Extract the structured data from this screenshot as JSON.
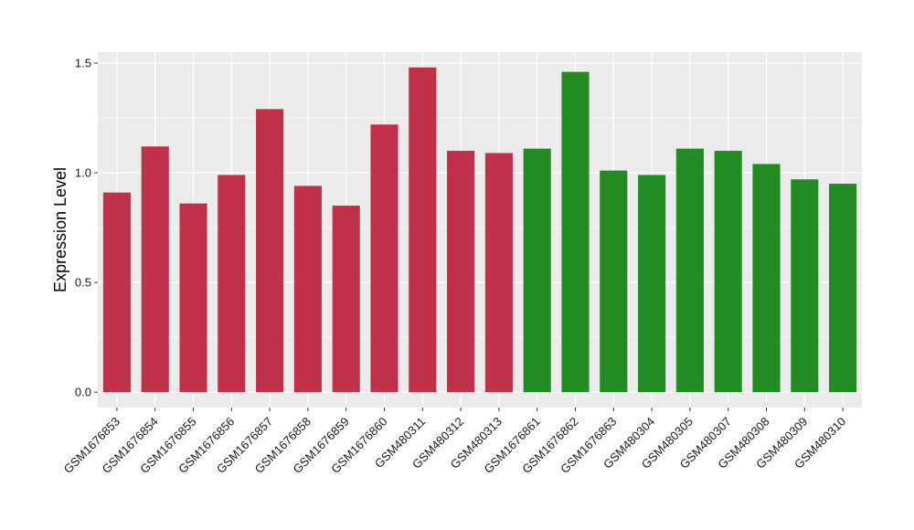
{
  "chart_data": {
    "type": "bar",
    "ylabel": "Expression Level",
    "xlabel": "",
    "ylim": [
      -0.07,
      1.55
    ],
    "yticks": [
      0.0,
      0.5,
      1.0,
      1.5
    ],
    "ytick_labels": [
      "0.0",
      "0.5",
      "1.0",
      "1.5"
    ],
    "grid": true,
    "background_color": "#ebebeb",
    "grid_color": "#ffffff",
    "categories": [
      "GSM1676853",
      "GSM1676854",
      "GSM1676855",
      "GSM1676856",
      "GSM1676857",
      "GSM1676858",
      "GSM1676859",
      "GSM1676860",
      "GSM480311",
      "GSM480312",
      "GSM480313",
      "GSM1676861",
      "GSM1676862",
      "GSM1676863",
      "GSM480304",
      "GSM480305",
      "GSM480307",
      "GSM480308",
      "GSM480309",
      "GSM480310"
    ],
    "values": [
      0.91,
      1.12,
      0.86,
      0.99,
      1.29,
      0.94,
      0.85,
      1.22,
      1.48,
      1.1,
      1.09,
      1.11,
      1.46,
      1.01,
      0.99,
      1.11,
      1.1,
      1.04,
      0.97,
      0.95
    ],
    "bar_colors": [
      "#c0304a",
      "#c0304a",
      "#c0304a",
      "#c0304a",
      "#c0304a",
      "#c0304a",
      "#c0304a",
      "#c0304a",
      "#c0304a",
      "#c0304a",
      "#c0304a",
      "#238b23",
      "#238b23",
      "#238b23",
      "#238b23",
      "#238b23",
      "#238b23",
      "#238b23",
      "#238b23",
      "#238b23"
    ]
  }
}
